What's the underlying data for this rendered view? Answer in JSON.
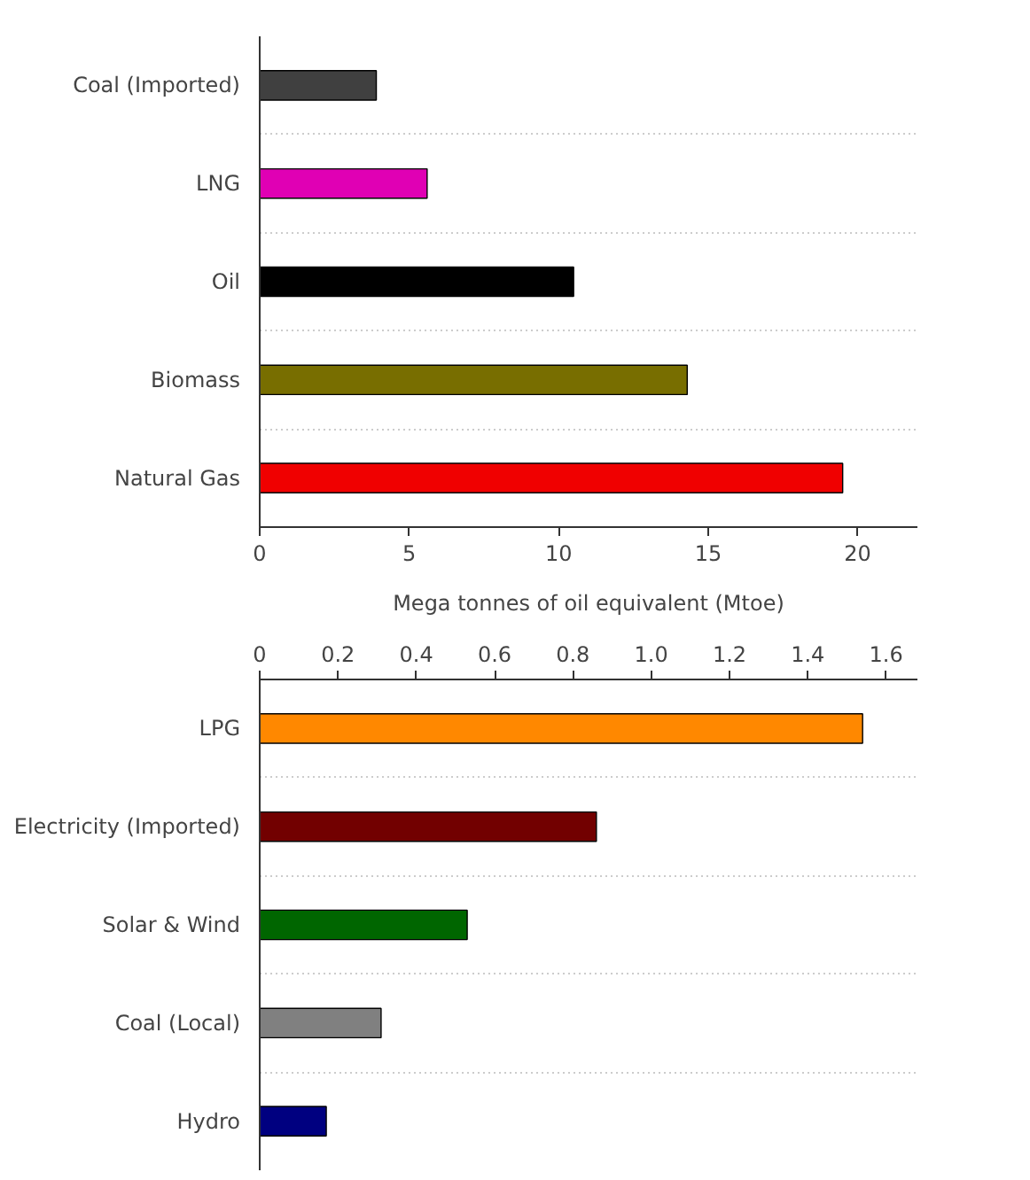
{
  "chart_data": [
    {
      "type": "bar",
      "orientation": "horizontal",
      "xlabel": "Mega tonnes of oil equivalent (Mtoe)",
      "categories": [
        "Coal (Imported)",
        "LNG",
        "Oil",
        "Biomass",
        "Natural Gas"
      ],
      "values": [
        3.9,
        5.6,
        10.5,
        14.3,
        19.5
      ],
      "colors": [
        "#404040",
        "#e000b4",
        "#000000",
        "#786e00",
        "#f00000"
      ],
      "xlim": [
        0,
        22
      ],
      "xticks": [
        0,
        5,
        10,
        15,
        20
      ],
      "grid": "y"
    },
    {
      "type": "bar",
      "orientation": "horizontal",
      "categories": [
        "LPG",
        "Electricity (Imported)",
        "Solar & Wind",
        "Coal (Local)",
        "Hydro"
      ],
      "series": [
        {
          "axis": "x2",
          "values": [
            1.54,
            0.86,
            0.53,
            0.31,
            0.17
          ]
        }
      ],
      "colors": [
        "#ff8800",
        "#720000",
        "#006600",
        "#808080",
        "#000080"
      ],
      "x2lim": [
        0,
        1.68
      ],
      "x2ticks": [
        0,
        0.2,
        0.4,
        0.6,
        0.8,
        {
          "value": 1,
          "label": "1.0"
        },
        1.2,
        1.4,
        1.6
      ],
      "grid": "y"
    }
  ]
}
